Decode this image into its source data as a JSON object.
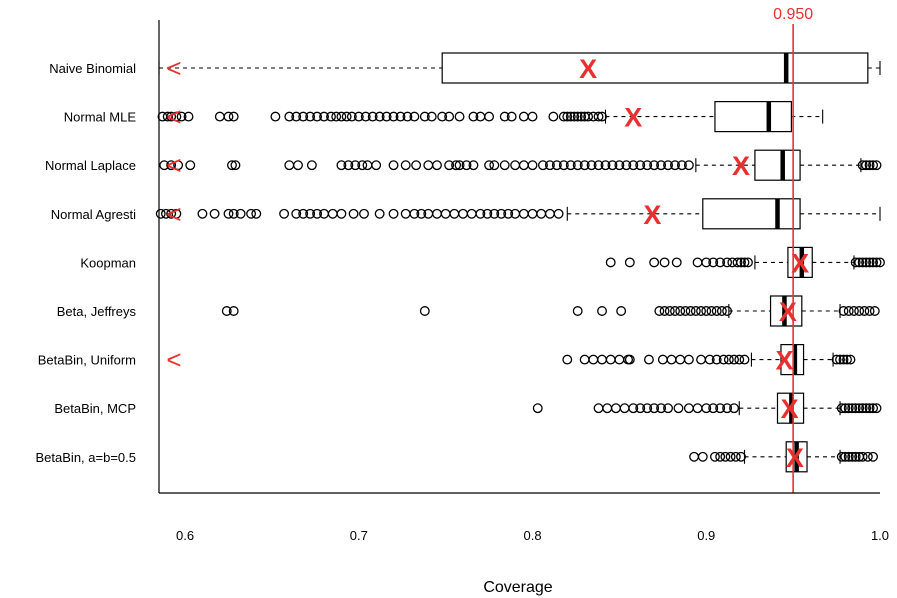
{
  "chart_data": {
    "type": "box",
    "xlabel": "Coverage",
    "xlim": [
      0.585,
      1.0
    ],
    "xticks": [
      0.6,
      0.7,
      0.8,
      0.9,
      1.0
    ],
    "xtick_labels": [
      "0.6",
      "0.7",
      "0.8",
      "0.9",
      "1.0"
    ],
    "reference_line": {
      "value": 0.95,
      "label": "0.950",
      "color": "#e8312f"
    },
    "mean_marker": "X",
    "offscale_marker": "<",
    "marker_color": "#e8312f",
    "categories": [
      "Naive Binomial",
      "Normal MLE",
      "Normal Laplace",
      "Normal Agresti",
      "Koopman",
      "Beta, Jeffreys",
      "BetaBin, Uniform",
      "BetaBin, MCP",
      "BetaBin, a=b=0.5"
    ],
    "boxes": [
      {
        "category": "Naive Binomial",
        "whisker_low": 0.585,
        "q1": 0.748,
        "median": 0.946,
        "q3": 0.993,
        "whisker_high": 1.0,
        "mean": 0.832,
        "mean_offscale": false,
        "offscale_low": true,
        "outliers": []
      },
      {
        "category": "Normal MLE",
        "whisker_low": 0.842,
        "q1": 0.905,
        "median": 0.936,
        "q3": 0.949,
        "whisker_high": 0.967,
        "mean": 0.858,
        "mean_offscale": false,
        "offscale_low": true,
        "outliers": [
          0.587,
          0.59,
          0.592,
          0.595,
          0.598,
          0.602,
          0.62,
          0.625,
          0.628,
          0.652,
          0.66,
          0.664,
          0.668,
          0.672,
          0.676,
          0.68,
          0.684,
          0.687,
          0.69,
          0.693,
          0.696,
          0.7,
          0.704,
          0.708,
          0.712,
          0.716,
          0.72,
          0.724,
          0.728,
          0.732,
          0.738,
          0.742,
          0.748,
          0.752,
          0.758,
          0.766,
          0.77,
          0.775,
          0.784,
          0.788,
          0.795,
          0.8,
          0.812,
          0.818,
          0.82,
          0.822,
          0.824,
          0.826,
          0.828,
          0.83,
          0.832,
          0.835,
          0.838,
          0.84
        ]
      },
      {
        "category": "Normal Laplace",
        "whisker_low": 0.894,
        "q1": 0.928,
        "median": 0.944,
        "q3": 0.954,
        "whisker_high": 0.989,
        "mean": 0.92,
        "mean_offscale": false,
        "offscale_low": true,
        "outliers": [
          0.588,
          0.592,
          0.596,
          0.603,
          0.627,
          0.629,
          0.66,
          0.665,
          0.673,
          0.69,
          0.694,
          0.698,
          0.702,
          0.705,
          0.71,
          0.72,
          0.727,
          0.733,
          0.74,
          0.745,
          0.752,
          0.756,
          0.758,
          0.762,
          0.766,
          0.775,
          0.778,
          0.784,
          0.79,
          0.795,
          0.8,
          0.806,
          0.81,
          0.814,
          0.818,
          0.822,
          0.826,
          0.83,
          0.834,
          0.838,
          0.842,
          0.846,
          0.85,
          0.854,
          0.858,
          0.862,
          0.866,
          0.87,
          0.874,
          0.878,
          0.882,
          0.886,
          0.89,
          0.99,
          0.992,
          0.994,
          0.996,
          0.998
        ]
      },
      {
        "category": "Normal Agresti",
        "whisker_low": 0.82,
        "q1": 0.898,
        "median": 0.941,
        "q3": 0.954,
        "whisker_high": 1.0,
        "mean": 0.869,
        "mean_offscale": false,
        "offscale_low": true,
        "outliers": [
          0.586,
          0.589,
          0.592,
          0.595,
          0.61,
          0.617,
          0.625,
          0.628,
          0.632,
          0.638,
          0.641,
          0.657,
          0.664,
          0.668,
          0.672,
          0.676,
          0.68,
          0.685,
          0.69,
          0.697,
          0.703,
          0.712,
          0.72,
          0.727,
          0.732,
          0.736,
          0.74,
          0.745,
          0.75,
          0.755,
          0.76,
          0.765,
          0.77,
          0.774,
          0.778,
          0.782,
          0.786,
          0.79,
          0.795,
          0.8,
          0.805,
          0.81,
          0.815
        ]
      },
      {
        "category": "Koopman",
        "whisker_low": 0.928,
        "q1": 0.947,
        "median": 0.955,
        "q3": 0.961,
        "whisker_high": 0.985,
        "mean": 0.954,
        "mean_offscale": false,
        "offscale_low": false,
        "outliers": [
          0.845,
          0.856,
          0.87,
          0.876,
          0.883,
          0.895,
          0.9,
          0.904,
          0.908,
          0.912,
          0.915,
          0.918,
          0.92,
          0.922,
          0.924,
          0.986,
          0.988,
          0.99,
          0.992,
          0.994,
          0.996,
          0.998,
          1.0
        ]
      },
      {
        "category": "Beta, Jeffreys",
        "whisker_low": 0.913,
        "q1": 0.937,
        "median": 0.945,
        "q3": 0.955,
        "whisker_high": 0.977,
        "mean": 0.947,
        "mean_offscale": false,
        "offscale_low": false,
        "outliers": [
          0.624,
          0.628,
          0.738,
          0.826,
          0.84,
          0.851,
          0.873,
          0.876,
          0.879,
          0.882,
          0.885,
          0.888,
          0.891,
          0.894,
          0.897,
          0.9,
          0.903,
          0.906,
          0.909,
          0.912,
          0.979,
          0.982,
          0.985,
          0.988,
          0.991,
          0.994,
          0.997
        ]
      },
      {
        "category": "BetaBin, Uniform",
        "whisker_low": 0.926,
        "q1": 0.943,
        "median": 0.951,
        "q3": 0.956,
        "whisker_high": 0.973,
        "mean": 0.945,
        "mean_offscale": false,
        "offscale_low": true,
        "outliers": [
          0.82,
          0.83,
          0.835,
          0.84,
          0.845,
          0.85,
          0.855,
          0.856,
          0.867,
          0.875,
          0.88,
          0.885,
          0.89,
          0.897,
          0.902,
          0.906,
          0.91,
          0.913,
          0.916,
          0.919,
          0.922,
          0.975,
          0.977,
          0.979,
          0.981,
          0.983
        ]
      },
      {
        "category": "BetaBin, MCP",
        "whisker_low": 0.919,
        "q1": 0.941,
        "median": 0.949,
        "q3": 0.956,
        "whisker_high": 0.977,
        "mean": 0.948,
        "mean_offscale": false,
        "offscale_low": false,
        "outliers": [
          0.803,
          0.838,
          0.843,
          0.848,
          0.853,
          0.858,
          0.862,
          0.866,
          0.87,
          0.874,
          0.878,
          0.884,
          0.89,
          0.895,
          0.9,
          0.904,
          0.908,
          0.912,
          0.916,
          0.978,
          0.98,
          0.982,
          0.984,
          0.986,
          0.988,
          0.99,
          0.992,
          0.994,
          0.996,
          0.998
        ]
      },
      {
        "category": "BetaBin, a=b=0.5",
        "whisker_low": 0.922,
        "q1": 0.946,
        "median": 0.952,
        "q3": 0.958,
        "whisker_high": 0.977,
        "mean": 0.951,
        "mean_offscale": false,
        "offscale_low": false,
        "outliers": [
          0.893,
          0.898,
          0.905,
          0.908,
          0.911,
          0.914,
          0.917,
          0.92,
          0.978,
          0.98,
          0.982,
          0.984,
          0.986,
          0.988,
          0.99,
          0.993,
          0.996
        ]
      }
    ]
  }
}
